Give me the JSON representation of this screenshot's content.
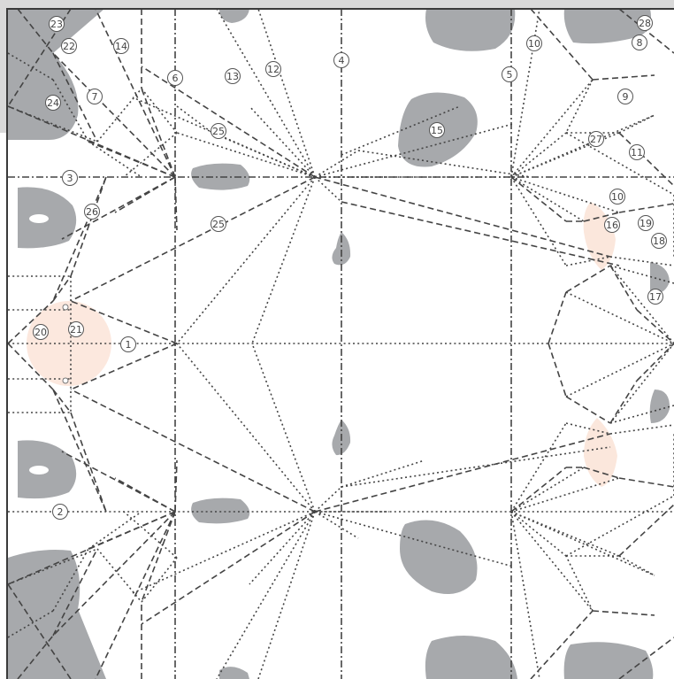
{
  "colors": {
    "background": "#ffffff",
    "frame": "#d9d9d9",
    "shape": "#a7a9ac",
    "highlight": "#fbe4d8",
    "line": "#444444"
  },
  "labels": [
    "1",
    "2",
    "3",
    "4",
    "5",
    "6",
    "7",
    "8",
    "9",
    "10",
    "10",
    "11",
    "12",
    "13",
    "14",
    "15",
    "16",
    "17",
    "18",
    "19",
    "20",
    "21",
    "22",
    "23",
    "24",
    "25",
    "25",
    "26",
    "27",
    "28"
  ]
}
